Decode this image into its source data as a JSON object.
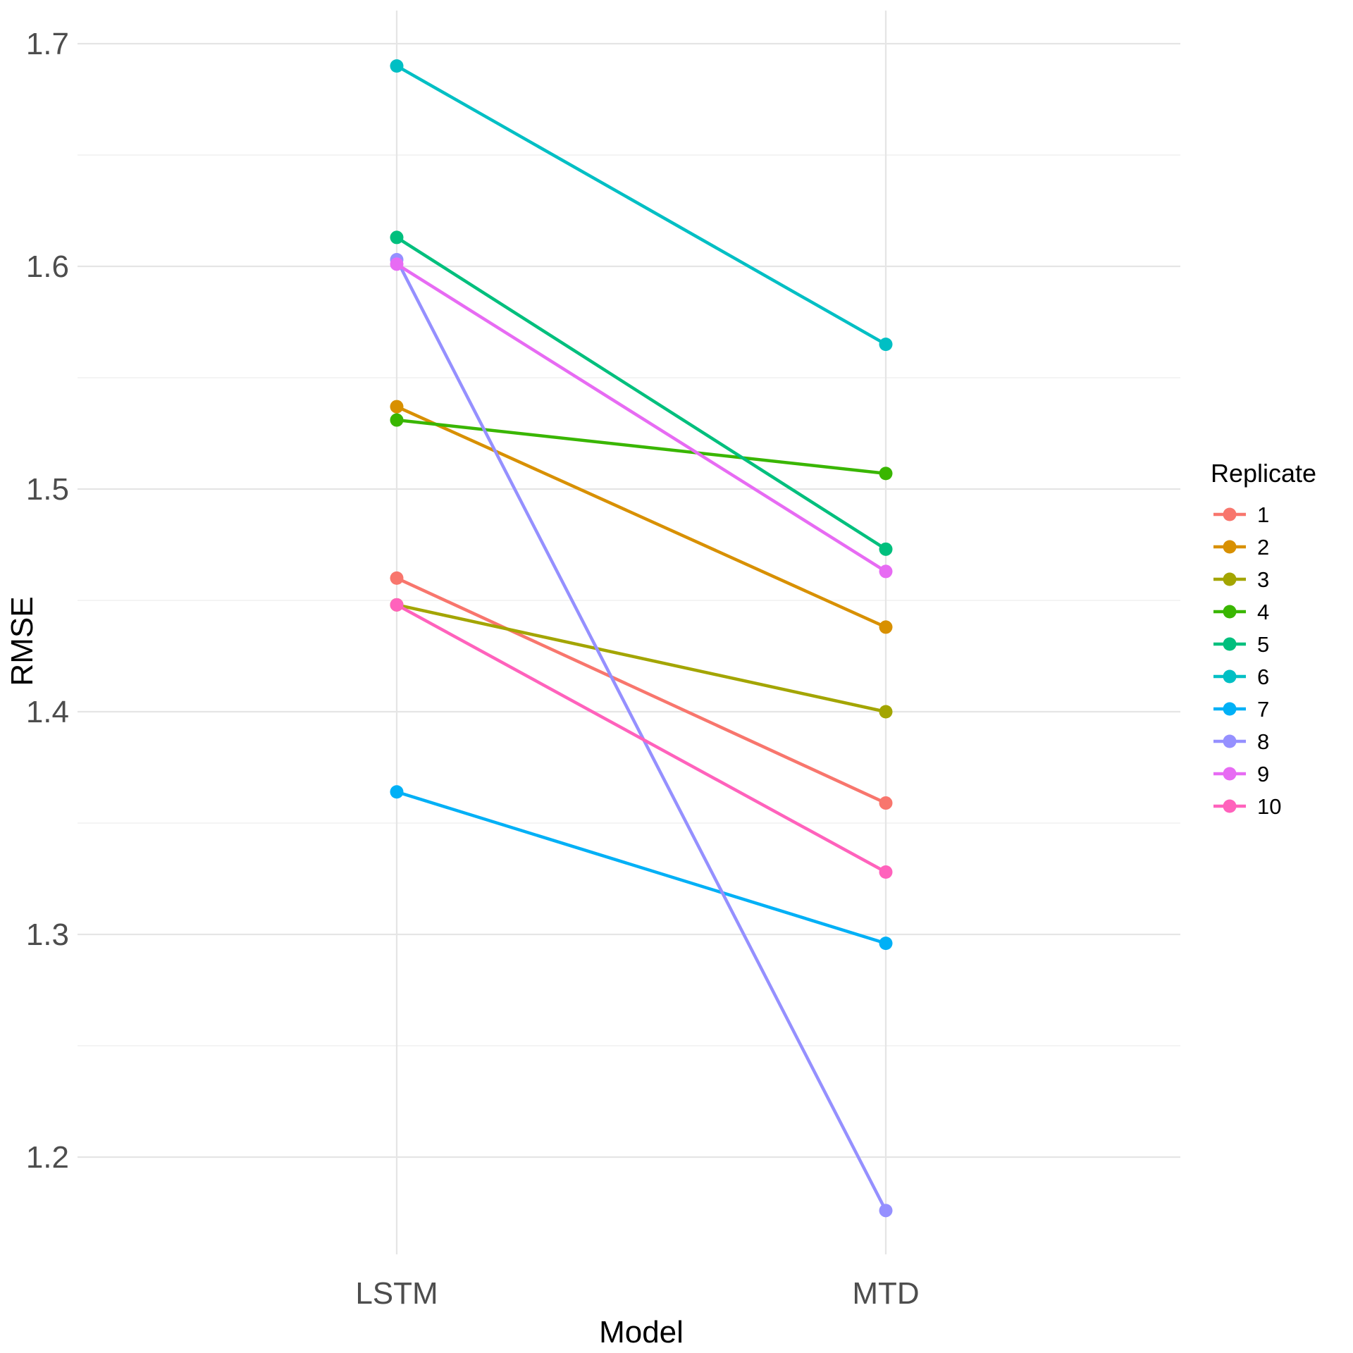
{
  "chart_data": {
    "type": "line",
    "title": "",
    "xlabel": "Model",
    "ylabel": "RMSE",
    "categories": [
      "LSTM",
      "MTD"
    ],
    "ylim": [
      1.155,
      1.715
    ],
    "yticks": [
      "1.2",
      "1.3",
      "1.4",
      "1.5",
      "1.6",
      "1.7"
    ],
    "grid": true,
    "legend": {
      "title": "Replicate",
      "placement": "right"
    },
    "series": [
      {
        "name": "1",
        "color": "#F8766D",
        "values": [
          1.46,
          1.359
        ]
      },
      {
        "name": "2",
        "color": "#D89000",
        "values": [
          1.537,
          1.438
        ]
      },
      {
        "name": "3",
        "color": "#A3A500",
        "values": [
          1.448,
          1.4
        ]
      },
      {
        "name": "4",
        "color": "#39B600",
        "values": [
          1.531,
          1.507
        ]
      },
      {
        "name": "5",
        "color": "#00BF7D",
        "values": [
          1.613,
          1.473
        ]
      },
      {
        "name": "6",
        "color": "#00BFC4",
        "values": [
          1.69,
          1.565
        ]
      },
      {
        "name": "7",
        "color": "#00B0F6",
        "values": [
          1.364,
          1.296
        ]
      },
      {
        "name": "8",
        "color": "#9590FF",
        "values": [
          1.603,
          1.176
        ]
      },
      {
        "name": "9",
        "color": "#E76BF3",
        "values": [
          1.601,
          1.463
        ]
      },
      {
        "name": "10",
        "color": "#FF62BC",
        "values": [
          1.448,
          1.328
        ]
      }
    ]
  }
}
